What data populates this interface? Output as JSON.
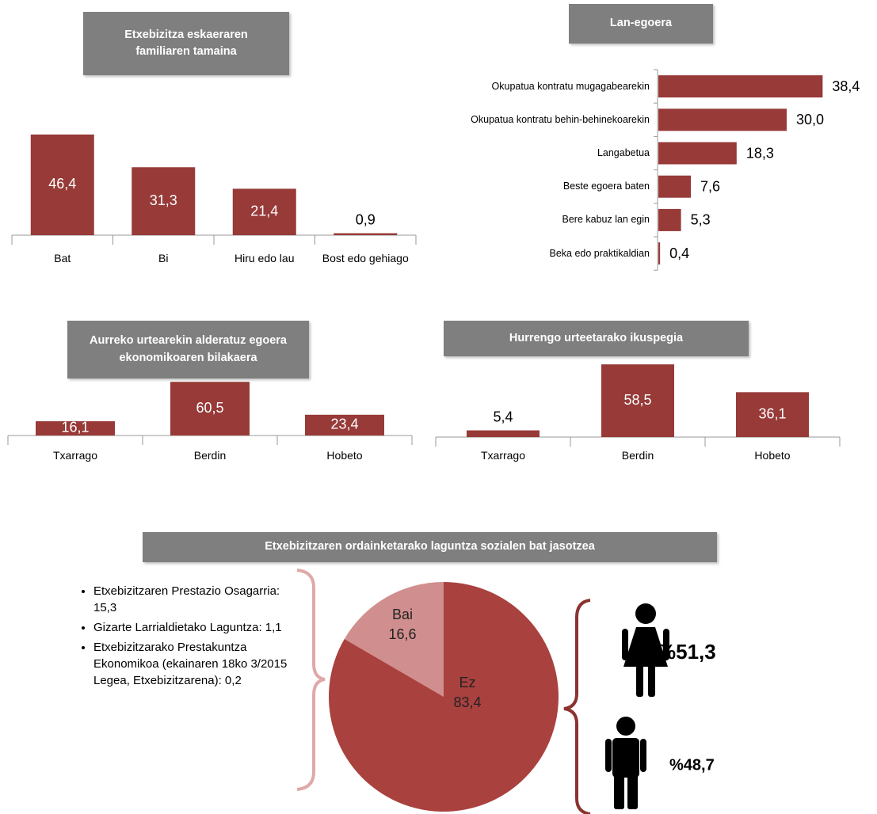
{
  "chart_data": [
    {
      "type": "bar",
      "title": "Etxebizitza eskaeraren familiaren tamaina",
      "categories": [
        "Bat",
        "Bi",
        "Hiru edo lau",
        "Bost edo gehiago"
      ],
      "values": [
        46.4,
        31.3,
        21.4,
        0.9
      ],
      "value_labels": [
        "46,4",
        "31,3",
        "21,4",
        "0,9"
      ],
      "color": "#973a38"
    },
    {
      "type": "barh",
      "title": "Lan-egoera",
      "categories": [
        "Okupatua kontratu mugagabearekin",
        "Okupatua kontratu behin-behinekoarekin",
        "Langabetua",
        "Beste egoera baten",
        "Bere kabuz lan egin",
        "Beka edo praktikaldian"
      ],
      "values": [
        38.4,
        30.0,
        18.3,
        7.6,
        5.3,
        0.4
      ],
      "value_labels": [
        "38,4",
        "30,0",
        "18,3",
        "7,6",
        "5,3",
        "0,4"
      ],
      "color": "#973a38"
    },
    {
      "type": "bar",
      "title": "Aurreko urtearekin alderatuz egoera ekonomikoaren bilakaera",
      "categories": [
        "Txarrago",
        "Berdin",
        "Hobeto"
      ],
      "values": [
        16.1,
        60.5,
        23.4
      ],
      "value_labels": [
        "16,1",
        "60,5",
        "23,4"
      ],
      "color": "#973a38"
    },
    {
      "type": "bar",
      "title": "Hurrengo urteetarako ikuspegia",
      "categories": [
        "Txarrago",
        "Berdin",
        "Hobeto"
      ],
      "values": [
        5.4,
        58.5,
        36.1
      ],
      "value_labels": [
        "5,4",
        "58,5",
        "36,1"
      ],
      "color": "#973a38"
    },
    {
      "type": "pie",
      "title": "Etxebizitzaren ordainketarako laguntza sozialen bat jasotzea",
      "categories": [
        "Bai",
        "Ez"
      ],
      "values": [
        16.6,
        83.4
      ],
      "value_labels": [
        "16,6",
        "83,4"
      ],
      "colors": [
        "#d08f8e",
        "#a9413f"
      ],
      "notes": [
        "Etxebizitzaren Prestazio Osagarria: 15,3",
        "Gizarte Larrialdietako Laguntza: 1,1",
        "Etxebizitzarako Prestakuntza Ekonomikoa (ekainaren 18ko 3/2015 Legea, Etxebizitzarena): 0,2"
      ],
      "gender_shares": [
        {
          "value": 51.3,
          "label": "%51,3"
        },
        {
          "value": 48.7,
          "label": "%48,7"
        }
      ]
    }
  ]
}
